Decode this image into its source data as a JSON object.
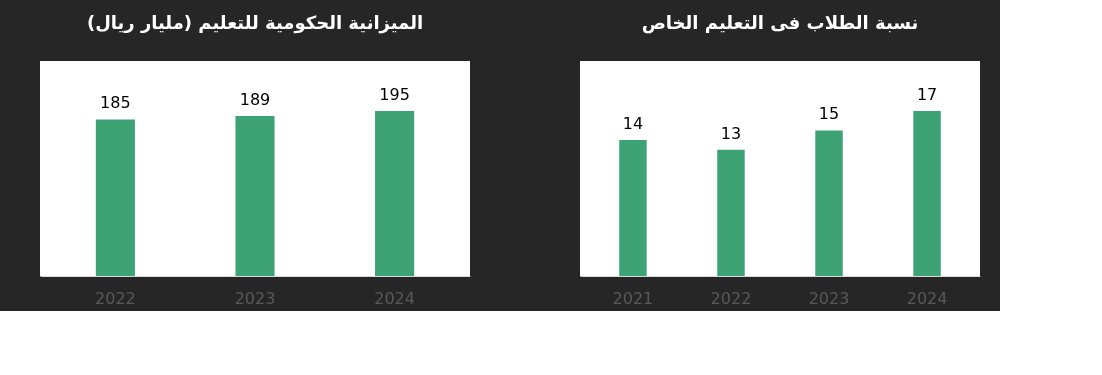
{
  "chart_data": [
    {
      "type": "bar",
      "title": "الميزانية الحكومية للتعليم (مليار ريال)",
      "categories": [
        "2022",
        "2023",
        "2024"
      ],
      "values": [
        185,
        189,
        195
      ],
      "color": "#3da374",
      "data_labels": true,
      "tick_labels": "x",
      "grid": false
    },
    {
      "type": "bar",
      "title": "نسبة الطلاب فى التعليم الخاص",
      "categories": [
        "2021",
        "2022",
        "2023",
        "2024"
      ],
      "values": [
        14,
        13,
        15,
        17
      ],
      "color": "#3da374",
      "data_labels": true,
      "tick_labels": "x",
      "grid": false
    }
  ]
}
